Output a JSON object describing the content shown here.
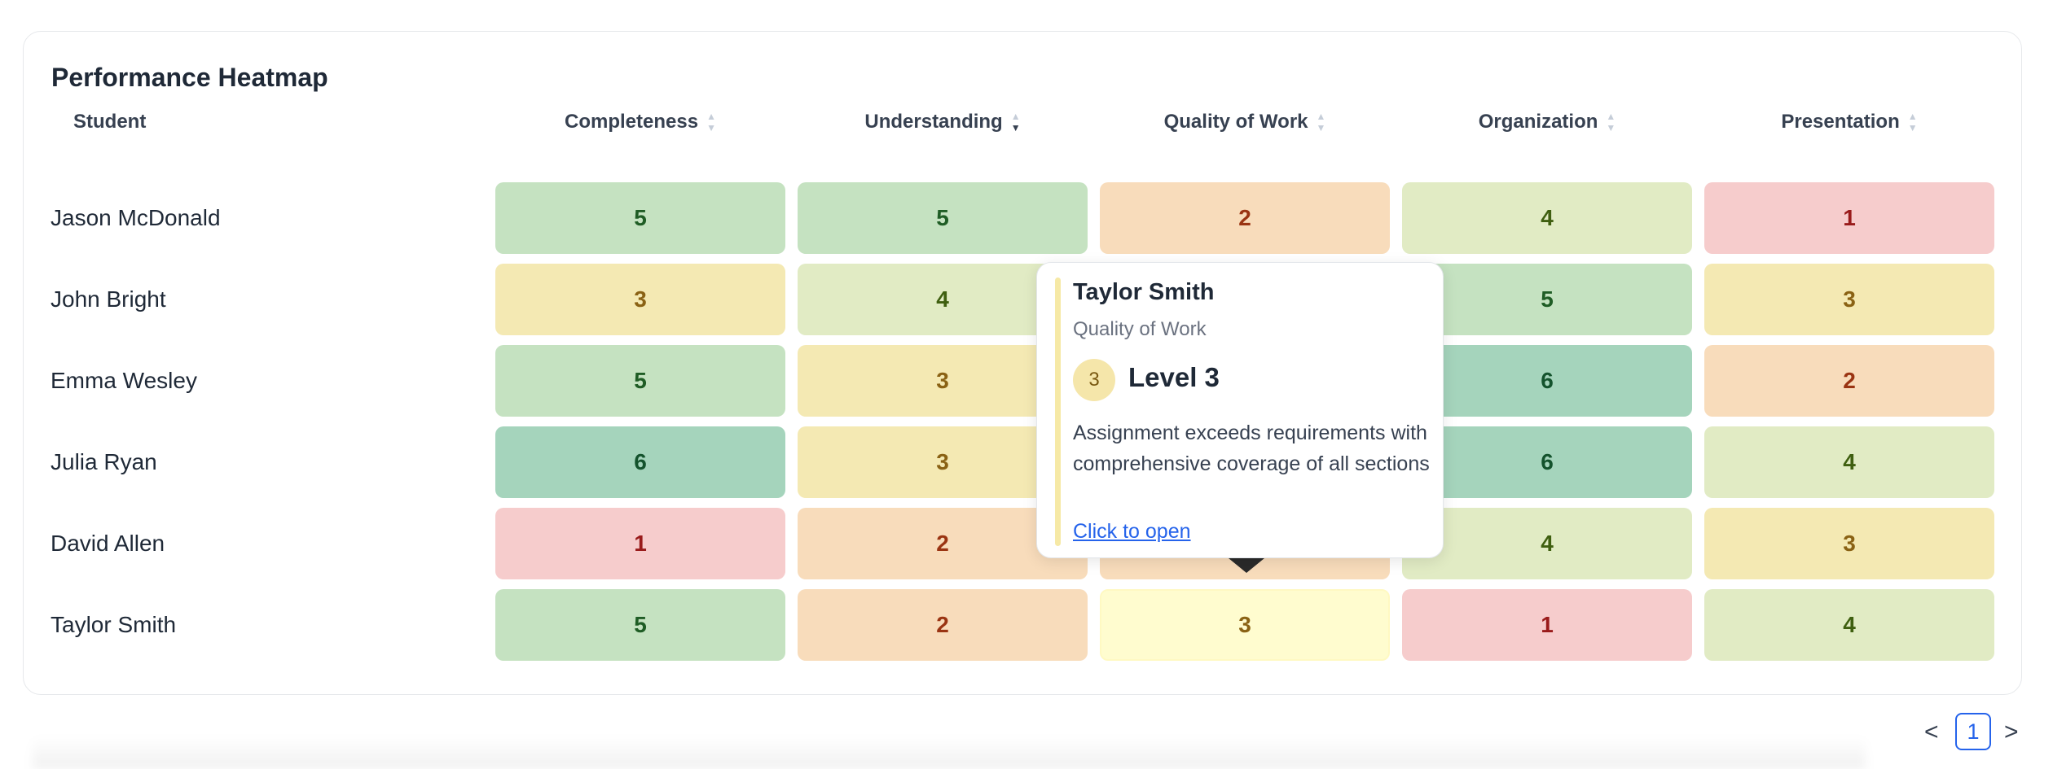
{
  "title": "Performance Heatmap",
  "columns": {
    "student": "Student",
    "completeness": "Completeness",
    "understanding": "Understanding",
    "quality": "Quality of Work",
    "organization": "Organization",
    "presentation": "Presentation"
  },
  "sort_glyphs": {
    "up": "▲",
    "down": "▼"
  },
  "rows": [
    {
      "name": "Jason McDonald",
      "scores": [
        "5",
        "5",
        "2",
        "4",
        "1"
      ]
    },
    {
      "name": "John Bright",
      "scores": [
        "3",
        "4",
        "",
        "5",
        "3"
      ]
    },
    {
      "name": "Emma Wesley",
      "scores": [
        "5",
        "3",
        "",
        "6",
        "2"
      ]
    },
    {
      "name": "Julia Ryan",
      "scores": [
        "6",
        "3",
        "",
        "6",
        "4"
      ]
    },
    {
      "name": "David Allen",
      "scores": [
        "1",
        "2",
        "",
        "4",
        "3"
      ]
    },
    {
      "name": "Taylor Smith",
      "scores": [
        "5",
        "2",
        "3",
        "1",
        "4"
      ]
    }
  ],
  "level_colors": {
    "1": {
      "bg": "#f6cccc",
      "fg": "#991b1b"
    },
    "2": {
      "bg": "#f8dcbb",
      "fg": "#9a3412"
    },
    "3": {
      "bg": "#f4e9b3",
      "fg": "#8a6214"
    },
    "4": {
      "bg": "#e1ebc4",
      "fg": "#3f5f10"
    },
    "5": {
      "bg": "#c5e2c1",
      "fg": "#1f5d25"
    },
    "6": {
      "bg": "#a5d4bc",
      "fg": "#14532d"
    }
  },
  "highlight_bg": "#fffccf",
  "tooltip": {
    "name": "Taylor Smith",
    "criterion": "Quality of Work",
    "badge": "3",
    "level": "Level 3",
    "description": "Assignment exceeds requirements with comprehensive coverage of all sections",
    "link": "Click to open"
  },
  "pagination": {
    "prev": "<",
    "current": "1",
    "next": ">"
  }
}
